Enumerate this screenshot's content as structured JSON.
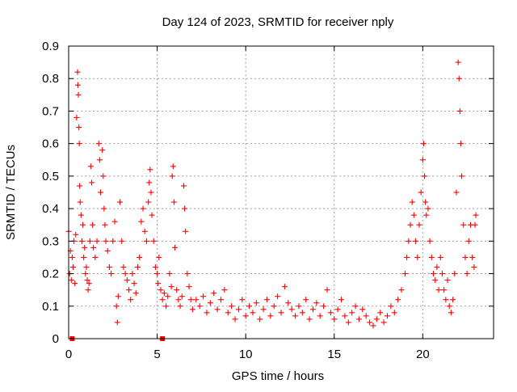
{
  "chart_data": {
    "type": "scatter",
    "title": "Day 124 of 2023, SRMTID for receiver nply",
    "xlabel": "GPS time / hours",
    "ylabel": "SRMTID / TECUs",
    "xlim": [
      0,
      24
    ],
    "ylim": [
      0,
      0.9
    ],
    "xticks": [
      0,
      5,
      10,
      15,
      20
    ],
    "xtick_labels": [
      "0",
      "5",
      "10",
      "15",
      "20"
    ],
    "yticks": [
      0,
      0.1,
      0.2,
      0.3,
      0.4,
      0.5,
      0.6,
      0.7,
      0.8,
      0.9
    ],
    "ytick_labels": [
      "0",
      "0.1",
      "0.2",
      "0.3",
      "0.4",
      "0.5",
      "0.6",
      "0.7",
      "0.8",
      "0.9"
    ],
    "grid": true,
    "marker": "+",
    "color": "#ff0000",
    "series": [
      {
        "name": "SRMTID",
        "points": [
          [
            0.0,
            0.33
          ],
          [
            0.05,
            0.2
          ],
          [
            0.1,
            0.27
          ],
          [
            0.15,
            0.18
          ],
          [
            0.2,
            0.25
          ],
          [
            0.25,
            0.22
          ],
          [
            0.3,
            0.3
          ],
          [
            0.35,
            0.17
          ],
          [
            0.4,
            0.32
          ],
          [
            0.45,
            0.68
          ],
          [
            0.5,
            0.82
          ],
          [
            0.52,
            0.78
          ],
          [
            0.55,
            0.75
          ],
          [
            0.58,
            0.65
          ],
          [
            0.6,
            0.6
          ],
          [
            0.62,
            0.47
          ],
          [
            0.65,
            0.42
          ],
          [
            0.7,
            0.38
          ],
          [
            0.75,
            0.3
          ],
          [
            0.8,
            0.35
          ],
          [
            0.85,
            0.25
          ],
          [
            0.9,
            0.28
          ],
          [
            0.95,
            0.2
          ],
          [
            1.0,
            0.22
          ],
          [
            1.05,
            0.18
          ],
          [
            1.1,
            0.15
          ],
          [
            1.15,
            0.17
          ],
          [
            1.2,
            0.3
          ],
          [
            1.25,
            0.53
          ],
          [
            1.3,
            0.48
          ],
          [
            1.35,
            0.35
          ],
          [
            1.4,
            0.28
          ],
          [
            1.5,
            0.25
          ],
          [
            1.6,
            0.3
          ],
          [
            1.7,
            0.6
          ],
          [
            1.75,
            0.55
          ],
          [
            1.8,
            0.45
          ],
          [
            1.9,
            0.58
          ],
          [
            1.95,
            0.5
          ],
          [
            2.0,
            0.4
          ],
          [
            2.05,
            0.35
          ],
          [
            2.1,
            0.3
          ],
          [
            2.2,
            0.27
          ],
          [
            2.3,
            0.22
          ],
          [
            2.4,
            0.2
          ],
          [
            2.5,
            0.3
          ],
          [
            2.6,
            0.36
          ],
          [
            2.7,
            0.1
          ],
          [
            2.75,
            0.05
          ],
          [
            2.8,
            0.13
          ],
          [
            2.9,
            0.42
          ],
          [
            3.0,
            0.3
          ],
          [
            3.1,
            0.22
          ],
          [
            3.2,
            0.2
          ],
          [
            3.3,
            0.18
          ],
          [
            3.4,
            0.15
          ],
          [
            3.5,
            0.12
          ],
          [
            3.6,
            0.2
          ],
          [
            3.7,
            0.17
          ],
          [
            3.8,
            0.14
          ],
          [
            3.9,
            0.22
          ],
          [
            4.0,
            0.25
          ],
          [
            4.1,
            0.36
          ],
          [
            4.2,
            0.4
          ],
          [
            4.3,
            0.33
          ],
          [
            4.4,
            0.3
          ],
          [
            4.5,
            0.42
          ],
          [
            4.55,
            0.48
          ],
          [
            4.6,
            0.52
          ],
          [
            4.65,
            0.45
          ],
          [
            4.7,
            0.38
          ],
          [
            4.8,
            0.3
          ],
          [
            4.9,
            0.22
          ],
          [
            5.0,
            0.2
          ],
          [
            5.05,
            0.17
          ],
          [
            5.1,
            0.25
          ],
          [
            5.2,
            0.15
          ],
          [
            5.3,
            0.12
          ],
          [
            5.4,
            0.14
          ],
          [
            5.5,
            0.1
          ],
          [
            5.6,
            0.13
          ],
          [
            5.7,
            0.2
          ],
          [
            5.8,
            0.16
          ],
          [
            5.85,
            0.5
          ],
          [
            5.9,
            0.53
          ],
          [
            5.95,
            0.42
          ],
          [
            6.0,
            0.28
          ],
          [
            6.1,
            0.15
          ],
          [
            6.2,
            0.12
          ],
          [
            6.3,
            0.1
          ],
          [
            6.4,
            0.13
          ],
          [
            6.5,
            0.47
          ],
          [
            6.55,
            0.4
          ],
          [
            6.6,
            0.33
          ],
          [
            6.7,
            0.2
          ],
          [
            6.8,
            0.16
          ],
          [
            6.9,
            0.12
          ],
          [
            7.0,
            0.09
          ],
          [
            7.2,
            0.12
          ],
          [
            7.4,
            0.1
          ],
          [
            7.6,
            0.13
          ],
          [
            7.8,
            0.08
          ],
          [
            8.0,
            0.11
          ],
          [
            8.2,
            0.14
          ],
          [
            8.4,
            0.09
          ],
          [
            8.6,
            0.12
          ],
          [
            8.8,
            0.15
          ],
          [
            9.0,
            0.08
          ],
          [
            9.2,
            0.1
          ],
          [
            9.4,
            0.06
          ],
          [
            9.6,
            0.09
          ],
          [
            9.8,
            0.12
          ],
          [
            10.0,
            0.07
          ],
          [
            10.2,
            0.1
          ],
          [
            10.4,
            0.08
          ],
          [
            10.6,
            0.11
          ],
          [
            10.8,
            0.06
          ],
          [
            11.0,
            0.09
          ],
          [
            11.2,
            0.12
          ],
          [
            11.4,
            0.07
          ],
          [
            11.6,
            0.1
          ],
          [
            11.8,
            0.13
          ],
          [
            12.0,
            0.08
          ],
          [
            12.2,
            0.16
          ],
          [
            12.4,
            0.11
          ],
          [
            12.6,
            0.09
          ],
          [
            12.8,
            0.07
          ],
          [
            13.0,
            0.1
          ],
          [
            13.2,
            0.08
          ],
          [
            13.4,
            0.12
          ],
          [
            13.6,
            0.06
          ],
          [
            13.8,
            0.09
          ],
          [
            14.0,
            0.11
          ],
          [
            14.2,
            0.07
          ],
          [
            14.4,
            0.1
          ],
          [
            14.6,
            0.15
          ],
          [
            14.8,
            0.08
          ],
          [
            15.0,
            0.06
          ],
          [
            15.2,
            0.09
          ],
          [
            15.4,
            0.12
          ],
          [
            15.6,
            0.07
          ],
          [
            15.8,
            0.05
          ],
          [
            16.0,
            0.08
          ],
          [
            16.2,
            0.1
          ],
          [
            16.4,
            0.06
          ],
          [
            16.6,
            0.09
          ],
          [
            16.8,
            0.07
          ],
          [
            17.0,
            0.05
          ],
          [
            17.2,
            0.04
          ],
          [
            17.4,
            0.06
          ],
          [
            17.6,
            0.08
          ],
          [
            17.8,
            0.05
          ],
          [
            18.0,
            0.07
          ],
          [
            18.2,
            0.1
          ],
          [
            18.4,
            0.08
          ],
          [
            18.6,
            0.12
          ],
          [
            18.8,
            0.15
          ],
          [
            19.0,
            0.2
          ],
          [
            19.1,
            0.25
          ],
          [
            19.2,
            0.3
          ],
          [
            19.3,
            0.35
          ],
          [
            19.4,
            0.42
          ],
          [
            19.5,
            0.38
          ],
          [
            19.6,
            0.3
          ],
          [
            19.7,
            0.25
          ],
          [
            19.8,
            0.35
          ],
          [
            19.9,
            0.45
          ],
          [
            20.0,
            0.55
          ],
          [
            20.05,
            0.6
          ],
          [
            20.1,
            0.5
          ],
          [
            20.15,
            0.42
          ],
          [
            20.2,
            0.38
          ],
          [
            20.3,
            0.4
          ],
          [
            20.4,
            0.3
          ],
          [
            20.5,
            0.25
          ],
          [
            20.6,
            0.2
          ],
          [
            20.7,
            0.18
          ],
          [
            20.8,
            0.22
          ],
          [
            20.9,
            0.15
          ],
          [
            21.0,
            0.25
          ],
          [
            21.1,
            0.2
          ],
          [
            21.2,
            0.15
          ],
          [
            21.3,
            0.12
          ],
          [
            21.4,
            0.18
          ],
          [
            21.5,
            0.1
          ],
          [
            21.6,
            0.08
          ],
          [
            21.7,
            0.12
          ],
          [
            21.8,
            0.2
          ],
          [
            21.9,
            0.45
          ],
          [
            22.0,
            0.85
          ],
          [
            22.05,
            0.8
          ],
          [
            22.1,
            0.7
          ],
          [
            22.15,
            0.6
          ],
          [
            22.2,
            0.5
          ],
          [
            22.3,
            0.35
          ],
          [
            22.4,
            0.25
          ],
          [
            22.5,
            0.2
          ],
          [
            22.6,
            0.3
          ],
          [
            22.7,
            0.35
          ],
          [
            22.8,
            0.25
          ],
          [
            22.9,
            0.22
          ],
          [
            22.95,
            0.35
          ],
          [
            23.0,
            0.38
          ]
        ]
      }
    ],
    "baseline_markers": [
      [
        0.2,
        0.0
      ],
      [
        5.3,
        0.0
      ]
    ]
  }
}
